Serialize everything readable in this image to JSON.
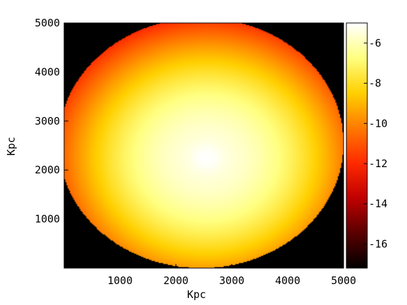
{
  "chart_data": {
    "type": "heatmap",
    "xlabel": "Kpc",
    "ylabel": "Kpc",
    "xlim": [
      0,
      5000
    ],
    "ylim": [
      0,
      5000
    ],
    "x_ticks": [
      1000,
      2000,
      3000,
      4000,
      5000
    ],
    "y_ticks": [
      1000,
      2000,
      3000,
      4000,
      5000
    ],
    "colorbar": {
      "range": [
        -17.2,
        -5.0
      ],
      "ticks": [
        -6,
        -8,
        -10,
        -12,
        -14,
        -16
      ],
      "colormap": [
        "#000000",
        "#5a0000",
        "#c00000",
        "#ff2a00",
        "#ff7a00",
        "#ffd000",
        "#ffff80",
        "#ffffff"
      ]
    },
    "background_value": -17.5,
    "halo": {
      "center": [
        2450,
        2550
      ],
      "radius": 2550,
      "edge_value": -13.3,
      "inner_value": -11.8
    },
    "components": [
      {
        "x": 2550,
        "y": 2250,
        "sigma": 520,
        "peak": -5.4
      },
      {
        "x": 2550,
        "y": 2250,
        "sigma": 160,
        "peak": -5.2
      },
      {
        "x": 3800,
        "y": 1900,
        "sigma": 340,
        "peak": -9.8
      },
      {
        "x": 3800,
        "y": 1900,
        "sigma": 110,
        "peak": -8.6
      },
      {
        "x": 4650,
        "y": 2050,
        "sigma": 110,
        "peak": -10.3
      },
      {
        "x": 4900,
        "y": 2150,
        "sigma": 90,
        "peak": -11.0
      },
      {
        "x": 3350,
        "y": 2300,
        "sigma": 120,
        "peak": -11.3
      },
      {
        "x": 3300,
        "y": 4050,
        "sigma": 80,
        "peak": -11.2
      },
      {
        "x": 4900,
        "y": 1100,
        "sigma": 90,
        "peak": -12.0
      },
      {
        "x": 1700,
        "y": 3350,
        "sigma": 100,
        "peak": -12.2
      },
      {
        "x": 2250,
        "y": 420,
        "sigma": 70,
        "peak": -11.8
      },
      {
        "x": 1200,
        "y": 3100,
        "sigma": 60,
        "peak": -12.2
      },
      {
        "x": 4450,
        "y": 2250,
        "sigma": 70,
        "peak": -11.8
      },
      {
        "x": 2900,
        "y": 1500,
        "sigma": 70,
        "peak": -12.3
      },
      {
        "x": 1850,
        "y": 2900,
        "sigma": 70,
        "peak": -12.0
      },
      {
        "x": 1350,
        "y": 2700,
        "sigma": 60,
        "peak": -12.5
      },
      {
        "x": 3950,
        "y": 1500,
        "sigma": 80,
        "peak": -12.3
      },
      {
        "x": 1050,
        "y": 1250,
        "sigma": 70,
        "peak": -12.8
      }
    ]
  }
}
